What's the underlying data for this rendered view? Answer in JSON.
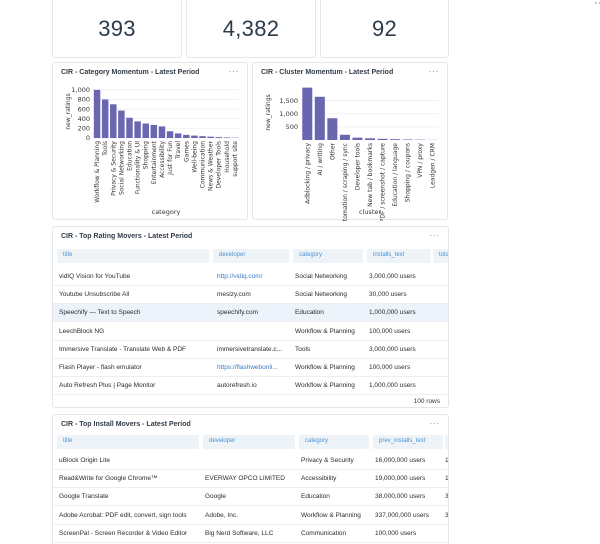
{
  "kpis": [
    "393",
    "4,382",
    "92"
  ],
  "category_chart": {
    "title": "CIR - Category Momentum - Latest Period",
    "menu": "···",
    "chart_data": {
      "type": "bar",
      "xlabel": "category",
      "ylabel": "new_ratings",
      "ylim": [
        0,
        1100
      ],
      "yticks": [
        "1,000",
        "800",
        "600",
        "400",
        "200",
        "0"
      ],
      "categories": [
        "Workflow & Planning",
        "Tools",
        "Privacy & Security",
        "Social Networking",
        "Education",
        "Functionality & UI",
        "Shopping",
        "Entertainment",
        "Accessibility",
        "Just for Fun",
        "Travel",
        "Games",
        "Well-being",
        "Communication",
        "News & Weather",
        "Developer Tools",
        "Household",
        "support site"
      ],
      "values": [
        1000,
        800,
        700,
        570,
        420,
        345,
        300,
        270,
        240,
        140,
        95,
        65,
        50,
        38,
        28,
        18,
        12,
        6
      ],
      "color": "#6b66b0"
    }
  },
  "cluster_chart": {
    "title": "CIR - Cluster Momentum - Latest Period",
    "menu": "···",
    "chart_data": {
      "type": "bar",
      "xlabel": "cluster",
      "ylabel": "new_ratings",
      "ylim": [
        0,
        2100
      ],
      "yticks": [
        "1,500",
        "1,000",
        "500"
      ],
      "categories": [
        "Adblocking / privacy",
        "AI / writing",
        "Other",
        "Automation / scraping / sync",
        "Developer tools",
        "New tab / bookmarks",
        "PDF / screenshot / capture",
        "Education / language",
        "Shopping / coupons",
        "VPN / proxy",
        "Leadgen / CRM"
      ],
      "values": [
        2000,
        1650,
        830,
        200,
        90,
        65,
        45,
        30,
        20,
        12,
        6
      ],
      "color": "#6b66b0"
    }
  },
  "rating_movers": {
    "title": "CIR - Top Rating Movers - Latest Period",
    "menu": "···",
    "columns": [
      "title",
      "developer",
      "category",
      "installs_text",
      "total"
    ],
    "rows": [
      [
        "vidIQ Vision for YouTube",
        "http://vidiq.com/",
        "Social Networking",
        "3,000,000 users"
      ],
      [
        "Youtube Unsubscribe All",
        "meslzy.com",
        "Social Networking",
        "30,000 users"
      ],
      [
        "Speechify — Text to Speech",
        "speechify.com",
        "Education",
        "1,000,000 users"
      ],
      [
        "LeechBlock NG",
        "",
        "Workflow & Planning",
        "100,000 users"
      ],
      [
        "Immersive Translate - Translate Web & PDF",
        "immersivetranslate.c...",
        "Tools",
        "3,000,000 users"
      ],
      [
        "Flash Player - flash emulator",
        "https://flashwebonli...",
        "Workflow & Planning",
        "100,000 users"
      ],
      [
        "Auto Refresh Plus | Page Monitor",
        "autorefresh.io",
        "Workflow & Planning",
        "1,000,000 users"
      ]
    ],
    "footer": "100 rows"
  },
  "install_movers": {
    "title": "CIR - Top Install Movers - Latest Period",
    "menu": "···",
    "columns": [
      "title",
      "developer",
      "category",
      "prev_installs_text",
      "i"
    ],
    "rows": [
      [
        "uBlock Origin Lite",
        "",
        "Privacy & Security",
        "16,000,000 users",
        "1"
      ],
      [
        "Read&Write for Google Chrome™",
        "EVERWAY OPCO LIMITED",
        "Accessibility",
        "19,000,000 users",
        "1"
      ],
      [
        "Google Translate",
        "Google",
        "Education",
        "38,000,000 users",
        "3"
      ],
      [
        "Adobe Acrobat: PDF edit, convert, sign tools",
        "Adobe, Inc.",
        "Workflow & Planning",
        "337,000,000 users",
        "3"
      ],
      [
        "ScreenPal - Screen Recorder & Video Editor",
        "Big Nerd Software, LLC",
        "Communication",
        "100,000 users",
        ""
      ]
    ]
  },
  "corner_mark": "∘∘"
}
